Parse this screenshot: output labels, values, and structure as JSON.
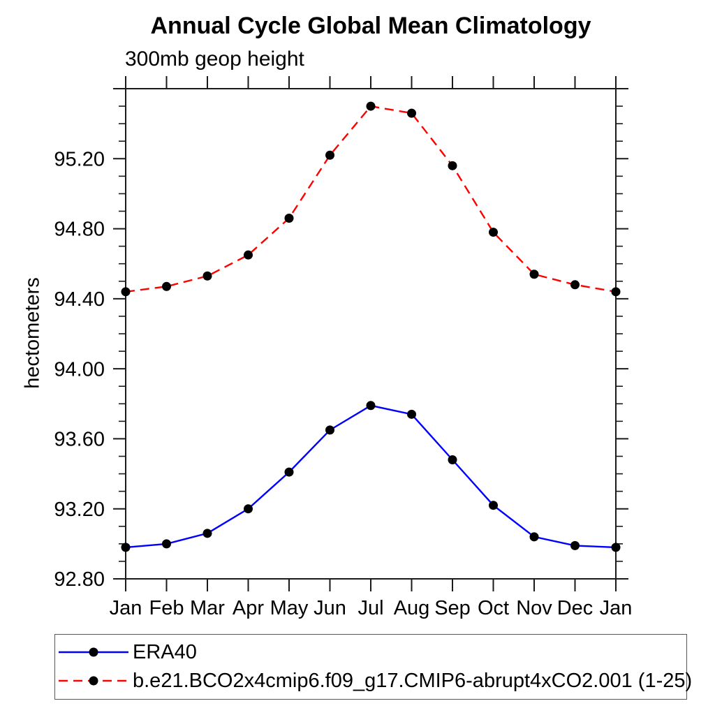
{
  "chart_data": {
    "type": "line",
    "title": "Annual Cycle Global Mean Climatology",
    "subtitle": "300mb geop height",
    "ylabel": "hectometers",
    "xlabel": "",
    "categories": [
      "Jan",
      "Feb",
      "Mar",
      "Apr",
      "May",
      "Jun",
      "Jul",
      "Aug",
      "Sep",
      "Oct",
      "Nov",
      "Dec",
      "Jan"
    ],
    "series": [
      {
        "name": "ERA40",
        "color": "#0000ff",
        "line_style": "solid",
        "marker": "filled-circle",
        "marker_color": "#000000",
        "values": [
          92.98,
          93.0,
          93.06,
          93.2,
          93.41,
          93.65,
          93.79,
          93.74,
          93.48,
          93.22,
          93.04,
          92.99,
          92.98
        ]
      },
      {
        "name": "b.e21.BCO2x4cmip6.f09_g17.CMIP6-abrupt4xCO2.001 (1-25)",
        "color": "#ff0000",
        "line_style": "dashed",
        "marker": "filled-circle",
        "marker_color": "#000000",
        "values": [
          94.44,
          94.47,
          94.53,
          94.65,
          94.86,
          95.22,
          95.5,
          95.46,
          95.16,
          94.78,
          94.54,
          94.48,
          94.44
        ]
      }
    ],
    "ylim": [
      92.8,
      95.6
    ],
    "y_major_step": 0.4,
    "y_minor_step": 0.1,
    "y_tick_labels": [
      "92.80",
      "93.20",
      "93.60",
      "94.00",
      "94.40",
      "94.80",
      "95.20"
    ],
    "grid": false,
    "legend_position": "bottom-left-box",
    "frame_color": "#1a1a1a",
    "text_color": "#000000"
  }
}
